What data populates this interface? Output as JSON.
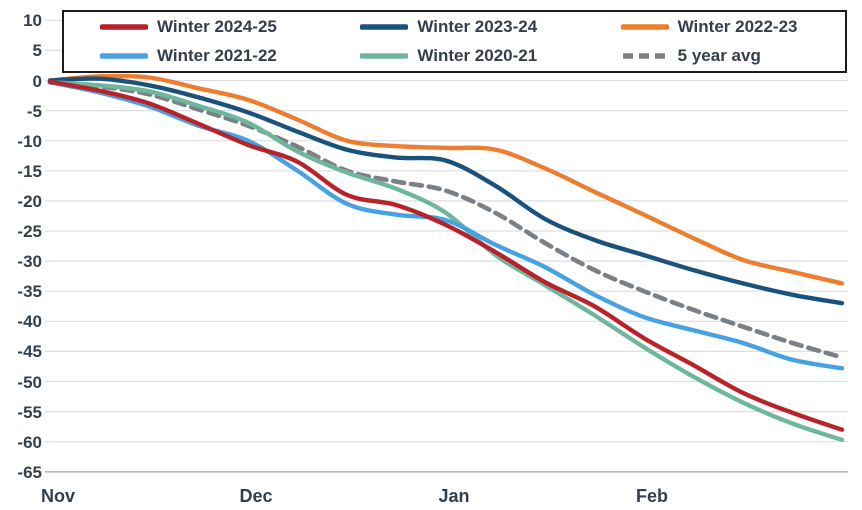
{
  "chart_data": {
    "type": "line",
    "title": "",
    "xlabel": "",
    "ylabel": "",
    "x_axis": {
      "tick_labels": [
        "Nov",
        "Dec",
        "Jan",
        "Feb"
      ],
      "tick_positions_months": [
        0,
        1,
        2,
        3
      ],
      "range_months": [
        0,
        4
      ]
    },
    "y_axis": {
      "ticks": [
        10,
        5,
        0,
        -5,
        -10,
        -15,
        -20,
        -25,
        -30,
        -35,
        -40,
        -45,
        -50,
        -55,
        -60,
        -65
      ],
      "ylim": [
        10,
        -65
      ]
    },
    "grid": "horizontal",
    "legend_position": "top",
    "x_months_since_nov1": [
      0,
      0.25,
      0.5,
      0.75,
      1,
      1.25,
      1.5,
      1.75,
      2,
      2.25,
      2.5,
      2.75,
      3,
      3.25,
      3.5,
      3.75,
      4
    ],
    "series": [
      {
        "name": "Winter 2024-25",
        "color": "#b8222a",
        "style": "solid",
        "values": [
          -0.2,
          -1.7,
          -3.8,
          -7.2,
          -10.7,
          -13.5,
          -19.0,
          -20.7,
          -24.0,
          -28.5,
          -33.5,
          -37.5,
          -42.8,
          -47.3,
          -51.9,
          -55.2,
          -58.0
        ]
      },
      {
        "name": "Winter 2023-24",
        "color": "#19537b",
        "style": "solid",
        "values": [
          0.0,
          0.3,
          -0.8,
          -2.8,
          -5.3,
          -8.5,
          -11.5,
          -12.8,
          -13.3,
          -17.5,
          -23.0,
          -26.5,
          -29.0,
          -31.5,
          -33.7,
          -35.6,
          -37.0
        ]
      },
      {
        "name": "Winter 2022-23",
        "color": "#ee7e2f",
        "style": "solid",
        "values": [
          0.0,
          0.7,
          0.5,
          -1.3,
          -3.2,
          -6.5,
          -10.0,
          -10.9,
          -11.2,
          -11.5,
          -14.6,
          -18.5,
          -22.3,
          -26.2,
          -29.8,
          -31.8,
          -33.7
        ]
      },
      {
        "name": "Winter 2021-22",
        "color": "#47a2e2",
        "style": "solid",
        "values": [
          -0.3,
          -2.0,
          -4.3,
          -7.5,
          -10.0,
          -15.0,
          -20.5,
          -22.3,
          -23.2,
          -27.3,
          -31.0,
          -35.6,
          -39.3,
          -41.5,
          -43.6,
          -46.4,
          -47.8
        ]
      },
      {
        "name": "Winter 2020-21",
        "color": "#6fb79c",
        "style": "solid",
        "values": [
          -0.3,
          -0.8,
          -1.8,
          -4.2,
          -7.0,
          -11.8,
          -15.3,
          -18.0,
          -22.0,
          -29.0,
          -34.0,
          -39.0,
          -44.3,
          -49.2,
          -53.5,
          -57.0,
          -59.7
        ]
      },
      {
        "name": "5 year avg",
        "color": "#7b8086",
        "style": "dashed",
        "values": [
          -0.3,
          -1.0,
          -2.3,
          -4.8,
          -7.5,
          -11.0,
          -15.0,
          -16.8,
          -18.3,
          -22.0,
          -27.0,
          -31.5,
          -35.0,
          -38.1,
          -40.9,
          -43.6,
          -46.0
        ]
      }
    ],
    "draw_order": [
      "5 year avg",
      "Winter 2022-23",
      "Winter 2023-24",
      "Winter 2020-21",
      "Winter 2021-22",
      "Winter 2024-25"
    ]
  },
  "colors": {
    "text": "#343f4b",
    "gridline": "#dcdee0",
    "bottom_gridline": "#b9bdc1",
    "background": "#ffffff",
    "legend_border": "#1c1c1c"
  }
}
